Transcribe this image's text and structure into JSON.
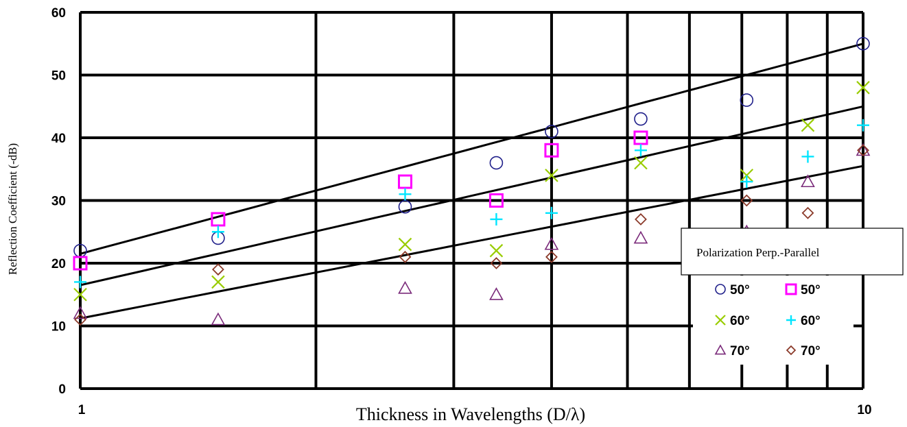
{
  "chart_data": {
    "type": "scatter",
    "title": "",
    "xlabel": "Thickness in Wavelengths (D/λ)",
    "ylabel": "Reflection Coefficient (-dB)",
    "x_scale": "log",
    "xlim": [
      1,
      10
    ],
    "ylim": [
      0,
      60
    ],
    "x_tick_labels": [
      "1",
      "10"
    ],
    "y_tick_labels": [
      "0",
      "10",
      "20",
      "30",
      "40",
      "50",
      "60"
    ],
    "x_gridlines": [
      1,
      2,
      3,
      4,
      5,
      6,
      7,
      8,
      9,
      10
    ],
    "y_gridlines": [
      0,
      10,
      20,
      30,
      40,
      50,
      60
    ],
    "grid": true,
    "legend": {
      "title": "Polarization Perp.-Parallel",
      "placement": "right"
    },
    "series": [
      {
        "name": "50°",
        "group": "Perp.",
        "marker": "circle",
        "color": "#1f1f8a",
        "x": [
          1,
          1.5,
          2.6,
          3.4,
          4,
          5.2,
          7.1,
          10
        ],
        "y": [
          22,
          24,
          29,
          36,
          41,
          43,
          46,
          55
        ]
      },
      {
        "name": "50°",
        "group": "Parallel",
        "marker": "square",
        "color": "#ff00ff",
        "x": [
          1,
          1.5,
          2.6,
          3.4,
          4,
          5.2
        ],
        "y": [
          20,
          27,
          33,
          30,
          38,
          40
        ]
      },
      {
        "name": "60°",
        "group": "Perp.",
        "marker": "x",
        "color": "#99cc00",
        "x": [
          1,
          1.5,
          2.6,
          3.4,
          4,
          5.2,
          7.1,
          8.5,
          10
        ],
        "y": [
          15,
          17,
          23,
          22,
          34,
          36,
          34,
          42,
          48
        ]
      },
      {
        "name": "60°",
        "group": "Parallel",
        "marker": "plus",
        "color": "#00e5ff",
        "x": [
          1,
          1.5,
          2.6,
          3.4,
          4,
          5.2,
          7.1,
          8.5,
          10
        ],
        "y": [
          17,
          25,
          31,
          27,
          28,
          38,
          33,
          37,
          42
        ]
      },
      {
        "name": "70°",
        "group": "Perp.",
        "marker": "triangle",
        "color": "#7a2a7a",
        "x": [
          1,
          1.5,
          2.6,
          3.4,
          4,
          5.2,
          7.1,
          8.5,
          10
        ],
        "y": [
          12,
          11,
          16,
          15,
          23,
          24,
          25,
          33,
          38
        ]
      },
      {
        "name": "70°",
        "group": "Parallel",
        "marker": "diamond",
        "color": "#8b3a2a",
        "x": [
          1,
          1.5,
          2.6,
          3.4,
          4,
          5.2,
          7.1,
          8.5,
          10
        ],
        "y": [
          11,
          19,
          21,
          20,
          21,
          27,
          30,
          28,
          38
        ]
      }
    ],
    "trend_lines": [
      {
        "x": [
          1,
          10
        ],
        "y": [
          21.5,
          55
        ]
      },
      {
        "x": [
          1,
          10
        ],
        "y": [
          16.5,
          45
        ]
      },
      {
        "x": [
          1,
          10
        ],
        "y": [
          11.2,
          35.5
        ]
      }
    ]
  }
}
